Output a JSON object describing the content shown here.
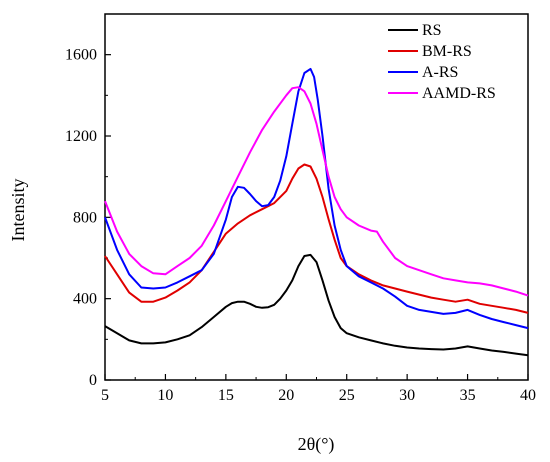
{
  "chart_data": {
    "type": "line",
    "title": "",
    "xlabel": "2θ(°)",
    "ylabel": "Intensity",
    "xlim": [
      5,
      40
    ],
    "ylim": [
      0,
      1800
    ],
    "xticks": [
      5,
      10,
      15,
      20,
      25,
      30,
      35,
      40
    ],
    "yticks": [
      0,
      400,
      800,
      1200,
      1600
    ],
    "grid": false,
    "legend_position": "top-right",
    "series": [
      {
        "name": "RS",
        "color": "#000000",
        "x": [
          5,
          6,
          7,
          8,
          9,
          10,
          11,
          12,
          13,
          14,
          15,
          15.5,
          16,
          16.5,
          17,
          17.5,
          18,
          18.5,
          19,
          19.5,
          20,
          20.5,
          21,
          21.5,
          22,
          22.5,
          23,
          23.5,
          24,
          24.5,
          25,
          26,
          27,
          28,
          29,
          30,
          31,
          32,
          33,
          34,
          35,
          36,
          37,
          38,
          39,
          40
        ],
        "y": [
          265,
          230,
          195,
          180,
          180,
          185,
          200,
          220,
          260,
          310,
          360,
          378,
          385,
          385,
          375,
          360,
          355,
          358,
          370,
          400,
          440,
          490,
          560,
          610,
          615,
          580,
          490,
          390,
          310,
          255,
          230,
          210,
          195,
          180,
          168,
          160,
          155,
          152,
          150,
          155,
          165,
          155,
          145,
          138,
          130,
          122
        ]
      },
      {
        "name": "BM-RS",
        "color": "#e00000",
        "x": [
          5,
          6,
          7,
          8,
          9,
          10,
          11,
          12,
          13,
          14,
          15,
          16,
          17,
          18,
          19,
          20,
          20.5,
          21,
          21.5,
          22,
          22.5,
          23,
          23.5,
          24,
          24.5,
          25,
          26,
          27,
          28,
          29,
          30,
          31,
          32,
          33,
          34,
          35,
          36,
          37,
          38,
          39,
          40
        ],
        "y": [
          610,
          520,
          430,
          385,
          385,
          405,
          440,
          480,
          540,
          630,
          720,
          770,
          810,
          840,
          870,
          930,
          990,
          1040,
          1060,
          1050,
          990,
          900,
          790,
          690,
          600,
          560,
          520,
          490,
          465,
          450,
          435,
          420,
          405,
          395,
          385,
          395,
          375,
          365,
          355,
          345,
          330
        ]
      },
      {
        "name": "A-RS",
        "color": "#0000ff",
        "x": [
          5,
          6,
          7,
          8,
          9,
          10,
          11,
          12,
          13,
          14,
          15,
          15.5,
          16,
          16.5,
          17,
          17.5,
          18,
          18.5,
          19,
          19.5,
          20,
          20.5,
          21,
          21.5,
          22,
          22.3,
          22.6,
          23,
          23.5,
          24,
          24.5,
          25,
          26,
          27,
          28,
          29,
          30,
          31,
          32,
          33,
          34,
          35,
          36,
          37,
          38,
          39,
          40
        ],
        "y": [
          800,
          640,
          520,
          455,
          450,
          455,
          480,
          510,
          540,
          620,
          790,
          900,
          950,
          945,
          915,
          880,
          855,
          860,
          900,
          980,
          1100,
          1260,
          1420,
          1510,
          1530,
          1490,
          1380,
          1200,
          940,
          760,
          640,
          560,
          510,
          480,
          450,
          410,
          365,
          345,
          335,
          325,
          330,
          345,
          320,
          300,
          285,
          270,
          255
        ]
      },
      {
        "name": "AAMD-RS",
        "color": "#ff00ff",
        "x": [
          5,
          6,
          7,
          8,
          9,
          10,
          11,
          12,
          13,
          14,
          15,
          16,
          17,
          18,
          19,
          20,
          20.5,
          21,
          21.5,
          22,
          22.5,
          23,
          23.5,
          24,
          24.5,
          25,
          26,
          27,
          27.5,
          28,
          29,
          30,
          31,
          32,
          33,
          34,
          35,
          36,
          37,
          38,
          39,
          40
        ],
        "y": [
          880,
          730,
          620,
          560,
          525,
          520,
          560,
          600,
          660,
          760,
          880,
          1000,
          1120,
          1230,
          1320,
          1400,
          1435,
          1440,
          1420,
          1360,
          1260,
          1130,
          1000,
          900,
          840,
          800,
          760,
          735,
          730,
          680,
          600,
          560,
          540,
          520,
          500,
          490,
          480,
          475,
          465,
          450,
          435,
          415
        ]
      }
    ]
  }
}
